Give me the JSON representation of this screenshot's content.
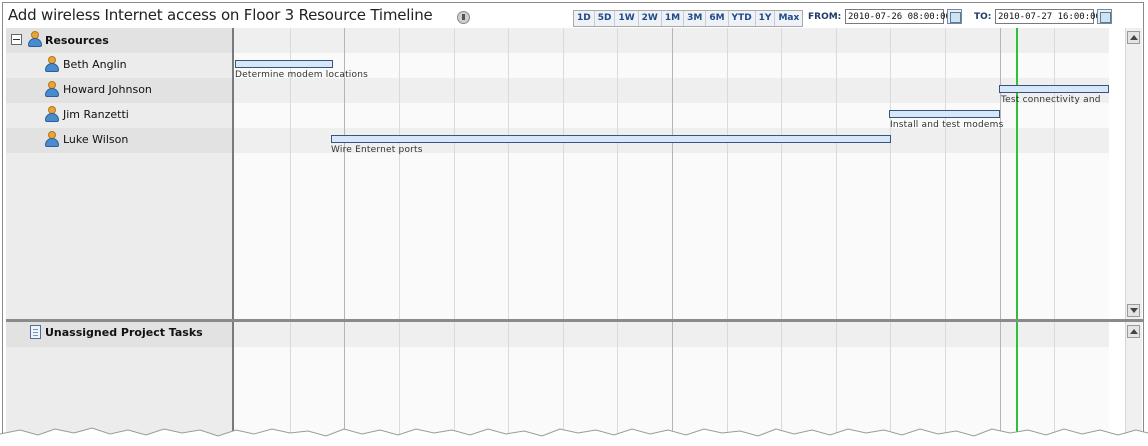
{
  "header": {
    "title": "Add wireless Internet access on Floor 3 Resource Timeline",
    "zoom_buttons": [
      "1D",
      "5D",
      "1W",
      "2W",
      "1M",
      "3M",
      "6M",
      "YTD",
      "1Y",
      "Max"
    ],
    "from_label": "FROM:",
    "from_value": "2010-07-26 08:00:00",
    "to_label": "TO:",
    "to_value": "2010-07-27 16:00:00"
  },
  "resources": {
    "group_label": "Resources",
    "people": [
      {
        "name": "Beth Anglin",
        "task": "Determine modem locations"
      },
      {
        "name": "Howard Johnson",
        "task": "Test connectivity and"
      },
      {
        "name": "Jim Ranzetti",
        "task": "Install and test modems"
      },
      {
        "name": "Luke Wilson",
        "task": "Wire Enternet ports"
      }
    ]
  },
  "unassigned": {
    "label": "Unassigned Project Tasks"
  },
  "colors": {
    "task_bar_fill": "#d6e6fb",
    "task_bar_border": "#3a5478",
    "now_line": "#2fbf3a",
    "zoom_text": "#1f4a8a"
  }
}
